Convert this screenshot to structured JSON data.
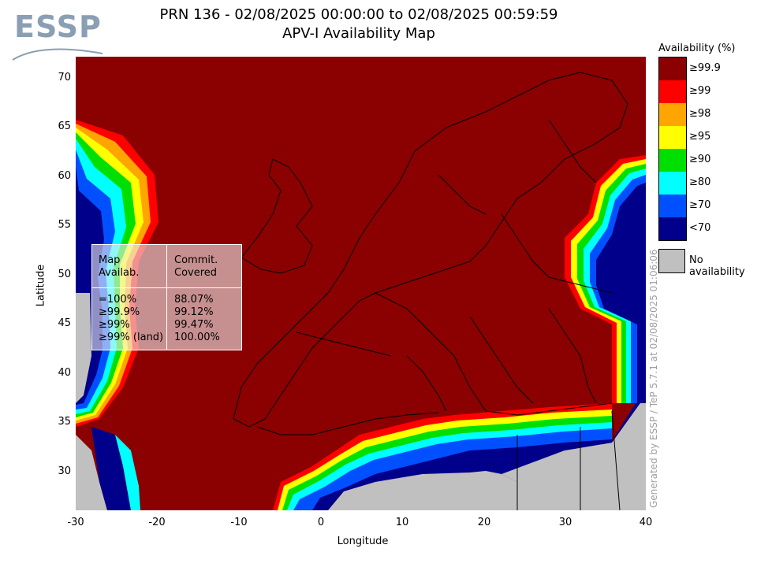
{
  "logo": {
    "text": "ESSP"
  },
  "title": {
    "line1": "PRN 136 - 02/08/2025 00:00:00 to 02/08/2025 00:59:59",
    "line2": "APV-I Availability Map"
  },
  "axes": {
    "xlabel": "Longitude",
    "ylabel": "Latitude",
    "xticks": [
      "-30",
      "-20",
      "-10",
      "0",
      "10",
      "20",
      "30",
      "40"
    ],
    "yticks": [
      "70",
      "65",
      "60",
      "55",
      "50",
      "45",
      "40",
      "35",
      "30"
    ],
    "xlim": [
      -30,
      40
    ],
    "ylim": [
      26,
      72
    ]
  },
  "legend": {
    "title": "Availability (%)",
    "items": [
      {
        "label": "≥99.9",
        "color": "#8b0000"
      },
      {
        "label": "≥99",
        "color": "#ff0000"
      },
      {
        "label": "≥98",
        "color": "#ffa500"
      },
      {
        "label": "≥95",
        "color": "#ffff00"
      },
      {
        "label": "≥90",
        "color": "#00e000"
      },
      {
        "label": "≥80",
        "color": "#00ffff"
      },
      {
        "label": "≥70",
        "color": "#0050ff"
      },
      {
        "label": "<70",
        "color": "#00008b"
      }
    ],
    "no_availability": {
      "label": "No availability",
      "color": "#c0c0c0"
    }
  },
  "stats": {
    "header_left": "Map\nAvailab.",
    "header_right": "Commit.\nCovered",
    "rows": [
      {
        "level": "=100%",
        "value": "88.07%"
      },
      {
        "level": "≥99.9%",
        "value": "99.12%"
      },
      {
        "level": "≥99%",
        "value": "99.47%"
      },
      {
        "level": "≥99% (land)",
        "value": "100.00%"
      }
    ]
  },
  "side_note": "Generated by ESSP / TeP 5.7.1 at 02/08/2025 01:06:06"
}
